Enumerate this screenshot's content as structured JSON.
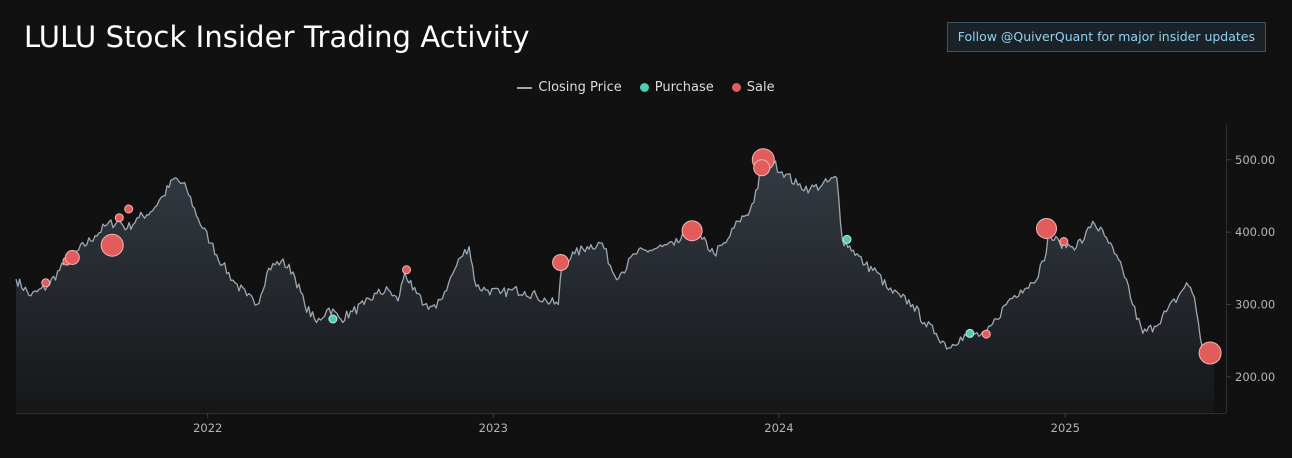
{
  "title": "LULU Stock Insider Trading Activity",
  "follow_button": "Follow @QuiverQuant for major insider updates",
  "legend": {
    "price_label": "Closing Price",
    "purchase_label": "Purchase",
    "sale_label": "Sale"
  },
  "colors": {
    "background": "#111111",
    "price_line": "#9aa8b6",
    "purchase": "#4ecdb4",
    "sale": "#e25c5c",
    "button_text": "#8fd3f4"
  },
  "chart_data": {
    "type": "line",
    "x_range": [
      "2021-05-01",
      "2025-07-10"
    ],
    "ylim": [
      150,
      555
    ],
    "x_tick_labels": [
      "2022",
      "2023",
      "2024",
      "2025"
    ],
    "x_tick_dates": [
      "2022-01-01",
      "2023-01-01",
      "2024-01-01",
      "2025-01-01"
    ],
    "y_ticks": [
      200,
      300,
      400,
      500
    ],
    "y_tick_labels": [
      "200.00",
      "300.00",
      "400.00",
      "500.00"
    ],
    "grid": false,
    "legend_position": "top-center",
    "series": [
      {
        "name": "Closing Price",
        "points": [
          [
            "2021-05-01",
            335
          ],
          [
            "2021-05-20",
            312
          ],
          [
            "2021-06-10",
            325
          ],
          [
            "2021-07-01",
            355
          ],
          [
            "2021-07-20",
            375
          ],
          [
            "2021-08-10",
            395
          ],
          [
            "2021-08-25",
            410
          ],
          [
            "2021-09-10",
            415
          ],
          [
            "2021-09-20",
            405
          ],
          [
            "2021-10-05",
            420
          ],
          [
            "2021-10-20",
            428
          ],
          [
            "2021-11-05",
            450
          ],
          [
            "2021-11-20",
            475
          ],
          [
            "2021-12-05",
            460
          ],
          [
            "2021-12-20",
            418
          ],
          [
            "2022-01-05",
            385
          ],
          [
            "2022-01-20",
            355
          ],
          [
            "2022-02-05",
            330
          ],
          [
            "2022-02-20",
            312
          ],
          [
            "2022-03-05",
            300
          ],
          [
            "2022-03-20",
            350
          ],
          [
            "2022-04-05",
            360
          ],
          [
            "2022-04-20",
            345
          ],
          [
            "2022-05-05",
            300
          ],
          [
            "2022-05-20",
            275
          ],
          [
            "2022-06-05",
            295
          ],
          [
            "2022-06-20",
            280
          ],
          [
            "2022-07-05",
            290
          ],
          [
            "2022-07-20",
            300
          ],
          [
            "2022-08-05",
            315
          ],
          [
            "2022-08-20",
            320
          ],
          [
            "2022-09-01",
            305
          ],
          [
            "2022-09-10",
            345
          ],
          [
            "2022-09-20",
            320
          ],
          [
            "2022-10-05",
            300
          ],
          [
            "2022-10-20",
            295
          ],
          [
            "2022-11-05",
            330
          ],
          [
            "2022-11-20",
            365
          ],
          [
            "2022-12-01",
            380
          ],
          [
            "2022-12-10",
            325
          ],
          [
            "2022-12-25",
            320
          ],
          [
            "2023-01-10",
            315
          ],
          [
            "2023-01-25",
            320
          ],
          [
            "2023-02-10",
            318
          ],
          [
            "2023-02-25",
            312
          ],
          [
            "2023-03-10",
            305
          ],
          [
            "2023-03-25",
            300
          ],
          [
            "2023-03-30",
            360
          ],
          [
            "2023-04-15",
            370
          ],
          [
            "2023-05-01",
            380
          ],
          [
            "2023-05-20",
            385
          ],
          [
            "2023-06-05",
            340
          ],
          [
            "2023-06-15",
            345
          ],
          [
            "2023-07-01",
            370
          ],
          [
            "2023-07-20",
            375
          ],
          [
            "2023-08-05",
            380
          ],
          [
            "2023-08-20",
            382
          ],
          [
            "2023-09-05",
            395
          ],
          [
            "2023-09-15",
            400
          ],
          [
            "2023-09-25",
            390
          ],
          [
            "2023-10-10",
            370
          ],
          [
            "2023-10-25",
            385
          ],
          [
            "2023-11-10",
            415
          ],
          [
            "2023-11-25",
            430
          ],
          [
            "2023-12-05",
            460
          ],
          [
            "2023-12-10",
            500
          ],
          [
            "2023-12-25",
            495
          ],
          [
            "2024-01-10",
            480
          ],
          [
            "2024-01-25",
            465
          ],
          [
            "2024-02-10",
            460
          ],
          [
            "2024-02-25",
            465
          ],
          [
            "2024-03-15",
            475
          ],
          [
            "2024-03-22",
            390
          ],
          [
            "2024-04-05",
            375
          ],
          [
            "2024-04-20",
            355
          ],
          [
            "2024-05-05",
            345
          ],
          [
            "2024-05-20",
            320
          ],
          [
            "2024-06-05",
            310
          ],
          [
            "2024-06-20",
            300
          ],
          [
            "2024-07-05",
            275
          ],
          [
            "2024-07-20",
            260
          ],
          [
            "2024-08-05",
            240
          ],
          [
            "2024-08-20",
            255
          ],
          [
            "2024-09-05",
            260
          ],
          [
            "2024-09-20",
            255
          ],
          [
            "2024-10-05",
            280
          ],
          [
            "2024-10-20",
            305
          ],
          [
            "2024-11-05",
            320
          ],
          [
            "2024-11-20",
            330
          ],
          [
            "2024-12-05",
            360
          ],
          [
            "2024-12-10",
            395
          ],
          [
            "2024-12-25",
            385
          ],
          [
            "2025-01-10",
            380
          ],
          [
            "2025-01-25",
            390
          ],
          [
            "2025-02-05",
            415
          ],
          [
            "2025-02-20",
            395
          ],
          [
            "2025-03-05",
            370
          ],
          [
            "2025-03-20",
            335
          ],
          [
            "2025-03-28",
            300
          ],
          [
            "2025-04-10",
            260
          ],
          [
            "2025-04-25",
            270
          ],
          [
            "2025-05-10",
            290
          ],
          [
            "2025-05-25",
            310
          ],
          [
            "2025-06-05",
            330
          ],
          [
            "2025-06-15",
            310
          ],
          [
            "2025-06-25",
            240
          ],
          [
            "2025-07-10",
            245
          ]
        ]
      }
    ],
    "insider_trades": [
      {
        "type": "Sale",
        "date": "2021-06-08",
        "price": 330,
        "size": 4
      },
      {
        "type": "Sale",
        "date": "2021-07-05",
        "price": 360,
        "size": 4
      },
      {
        "type": "Sale",
        "date": "2021-07-12",
        "price": 365,
        "size": 7
      },
      {
        "type": "Sale",
        "date": "2021-09-01",
        "price": 382,
        "size": 11
      },
      {
        "type": "Sale",
        "date": "2021-09-10",
        "price": 420,
        "size": 4
      },
      {
        "type": "Sale",
        "date": "2021-09-22",
        "price": 432,
        "size": 4
      },
      {
        "type": "Purchase",
        "date": "2022-06-10",
        "price": 280,
        "size": 4
      },
      {
        "type": "Sale",
        "date": "2022-09-12",
        "price": 348,
        "size": 4
      },
      {
        "type": "Sale",
        "date": "2023-03-28",
        "price": 358,
        "size": 8
      },
      {
        "type": "Sale",
        "date": "2023-09-12",
        "price": 402,
        "size": 10
      },
      {
        "type": "Sale",
        "date": "2023-12-12",
        "price": 500,
        "size": 11
      },
      {
        "type": "Sale",
        "date": "2023-12-10",
        "price": 489,
        "size": 8
      },
      {
        "type": "Purchase",
        "date": "2024-03-28",
        "price": 390,
        "size": 4
      },
      {
        "type": "Purchase",
        "date": "2024-09-01",
        "price": 260,
        "size": 4
      },
      {
        "type": "Sale",
        "date": "2024-09-22",
        "price": 259,
        "size": 4
      },
      {
        "type": "Sale",
        "date": "2024-12-08",
        "price": 405,
        "size": 10
      },
      {
        "type": "Sale",
        "date": "2024-12-30",
        "price": 387,
        "size": 4
      },
      {
        "type": "Sale",
        "date": "2025-07-05",
        "price": 233,
        "size": 11
      }
    ]
  }
}
